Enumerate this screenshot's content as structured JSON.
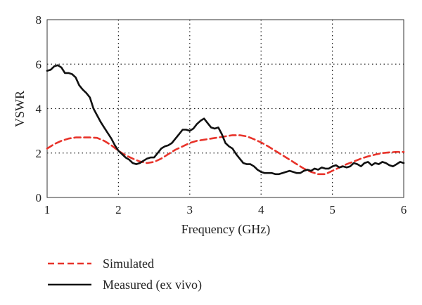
{
  "chart_data": {
    "type": "line",
    "xlabel": "Frequency (GHz)",
    "ylabel": "VSWR",
    "xlim": [
      1,
      6
    ],
    "ylim": [
      0,
      8
    ],
    "xticks": [
      1,
      2,
      3,
      4,
      5,
      6
    ],
    "yticks": [
      0,
      2,
      4,
      6,
      8
    ],
    "grid": "dotted",
    "legend_position": "bottom-left",
    "series": [
      {
        "name": "Simulated",
        "color": "#e8332a",
        "dash": "dashed",
        "x": [
          1.0,
          1.1,
          1.2,
          1.3,
          1.4,
          1.5,
          1.6,
          1.7,
          1.8,
          1.9,
          2.0,
          2.1,
          2.2,
          2.3,
          2.4,
          2.5,
          2.6,
          2.7,
          2.8,
          2.9,
          3.0,
          3.1,
          3.2,
          3.3,
          3.4,
          3.5,
          3.6,
          3.7,
          3.8,
          3.9,
          4.0,
          4.1,
          4.2,
          4.3,
          4.4,
          4.5,
          4.6,
          4.7,
          4.8,
          4.9,
          5.0,
          5.1,
          5.2,
          5.3,
          5.4,
          5.5,
          5.6,
          5.7,
          5.8,
          5.9,
          6.0
        ],
        "y": [
          2.2,
          2.4,
          2.55,
          2.65,
          2.7,
          2.7,
          2.7,
          2.68,
          2.55,
          2.35,
          2.1,
          1.9,
          1.75,
          1.62,
          1.55,
          1.6,
          1.75,
          1.95,
          2.15,
          2.3,
          2.45,
          2.55,
          2.6,
          2.65,
          2.7,
          2.75,
          2.8,
          2.8,
          2.75,
          2.62,
          2.48,
          2.3,
          2.1,
          1.9,
          1.7,
          1.5,
          1.3,
          1.15,
          1.05,
          1.05,
          1.2,
          1.35,
          1.5,
          1.62,
          1.75,
          1.85,
          1.93,
          2.0,
          2.03,
          2.05,
          2.05
        ]
      },
      {
        "name": "Measured (ex vivo)",
        "color": "#111111",
        "dash": "solid",
        "x": [
          1.0,
          1.05,
          1.1,
          1.15,
          1.2,
          1.25,
          1.3,
          1.35,
          1.4,
          1.45,
          1.5,
          1.55,
          1.6,
          1.65,
          1.7,
          1.75,
          1.8,
          1.85,
          1.9,
          1.95,
          2.0,
          2.05,
          2.1,
          2.15,
          2.2,
          2.25,
          2.3,
          2.35,
          2.4,
          2.45,
          2.5,
          2.55,
          2.6,
          2.65,
          2.7,
          2.75,
          2.8,
          2.85,
          2.9,
          2.95,
          3.0,
          3.05,
          3.1,
          3.15,
          3.2,
          3.25,
          3.3,
          3.35,
          3.4,
          3.45,
          3.5,
          3.55,
          3.6,
          3.65,
          3.7,
          3.75,
          3.8,
          3.85,
          3.9,
          3.95,
          4.0,
          4.05,
          4.1,
          4.15,
          4.2,
          4.25,
          4.3,
          4.35,
          4.4,
          4.45,
          4.5,
          4.55,
          4.6,
          4.65,
          4.7,
          4.75,
          4.8,
          4.85,
          4.9,
          4.95,
          5.0,
          5.05,
          5.1,
          5.15,
          5.2,
          5.25,
          5.3,
          5.35,
          5.4,
          5.45,
          5.5,
          5.55,
          5.6,
          5.65,
          5.7,
          5.75,
          5.8,
          5.85,
          5.9,
          5.95,
          6.0
        ],
        "y": [
          5.7,
          5.75,
          5.9,
          5.95,
          5.85,
          5.6,
          5.6,
          5.55,
          5.4,
          5.05,
          4.85,
          4.7,
          4.5,
          4.0,
          3.7,
          3.4,
          3.15,
          2.9,
          2.65,
          2.35,
          2.1,
          1.95,
          1.8,
          1.7,
          1.55,
          1.5,
          1.55,
          1.65,
          1.75,
          1.8,
          1.8,
          2.0,
          2.2,
          2.3,
          2.35,
          2.45,
          2.65,
          2.85,
          3.05,
          3.05,
          3.0,
          3.1,
          3.3,
          3.45,
          3.55,
          3.35,
          3.15,
          3.1,
          3.15,
          2.85,
          2.45,
          2.3,
          2.2,
          1.95,
          1.75,
          1.55,
          1.5,
          1.5,
          1.4,
          1.25,
          1.15,
          1.1,
          1.1,
          1.1,
          1.05,
          1.05,
          1.1,
          1.15,
          1.2,
          1.15,
          1.1,
          1.1,
          1.2,
          1.25,
          1.2,
          1.3,
          1.25,
          1.35,
          1.3,
          1.3,
          1.4,
          1.45,
          1.35,
          1.4,
          1.35,
          1.4,
          1.55,
          1.5,
          1.4,
          1.55,
          1.6,
          1.45,
          1.55,
          1.5,
          1.6,
          1.55,
          1.45,
          1.4,
          1.5,
          1.6,
          1.55
        ]
      }
    ]
  }
}
